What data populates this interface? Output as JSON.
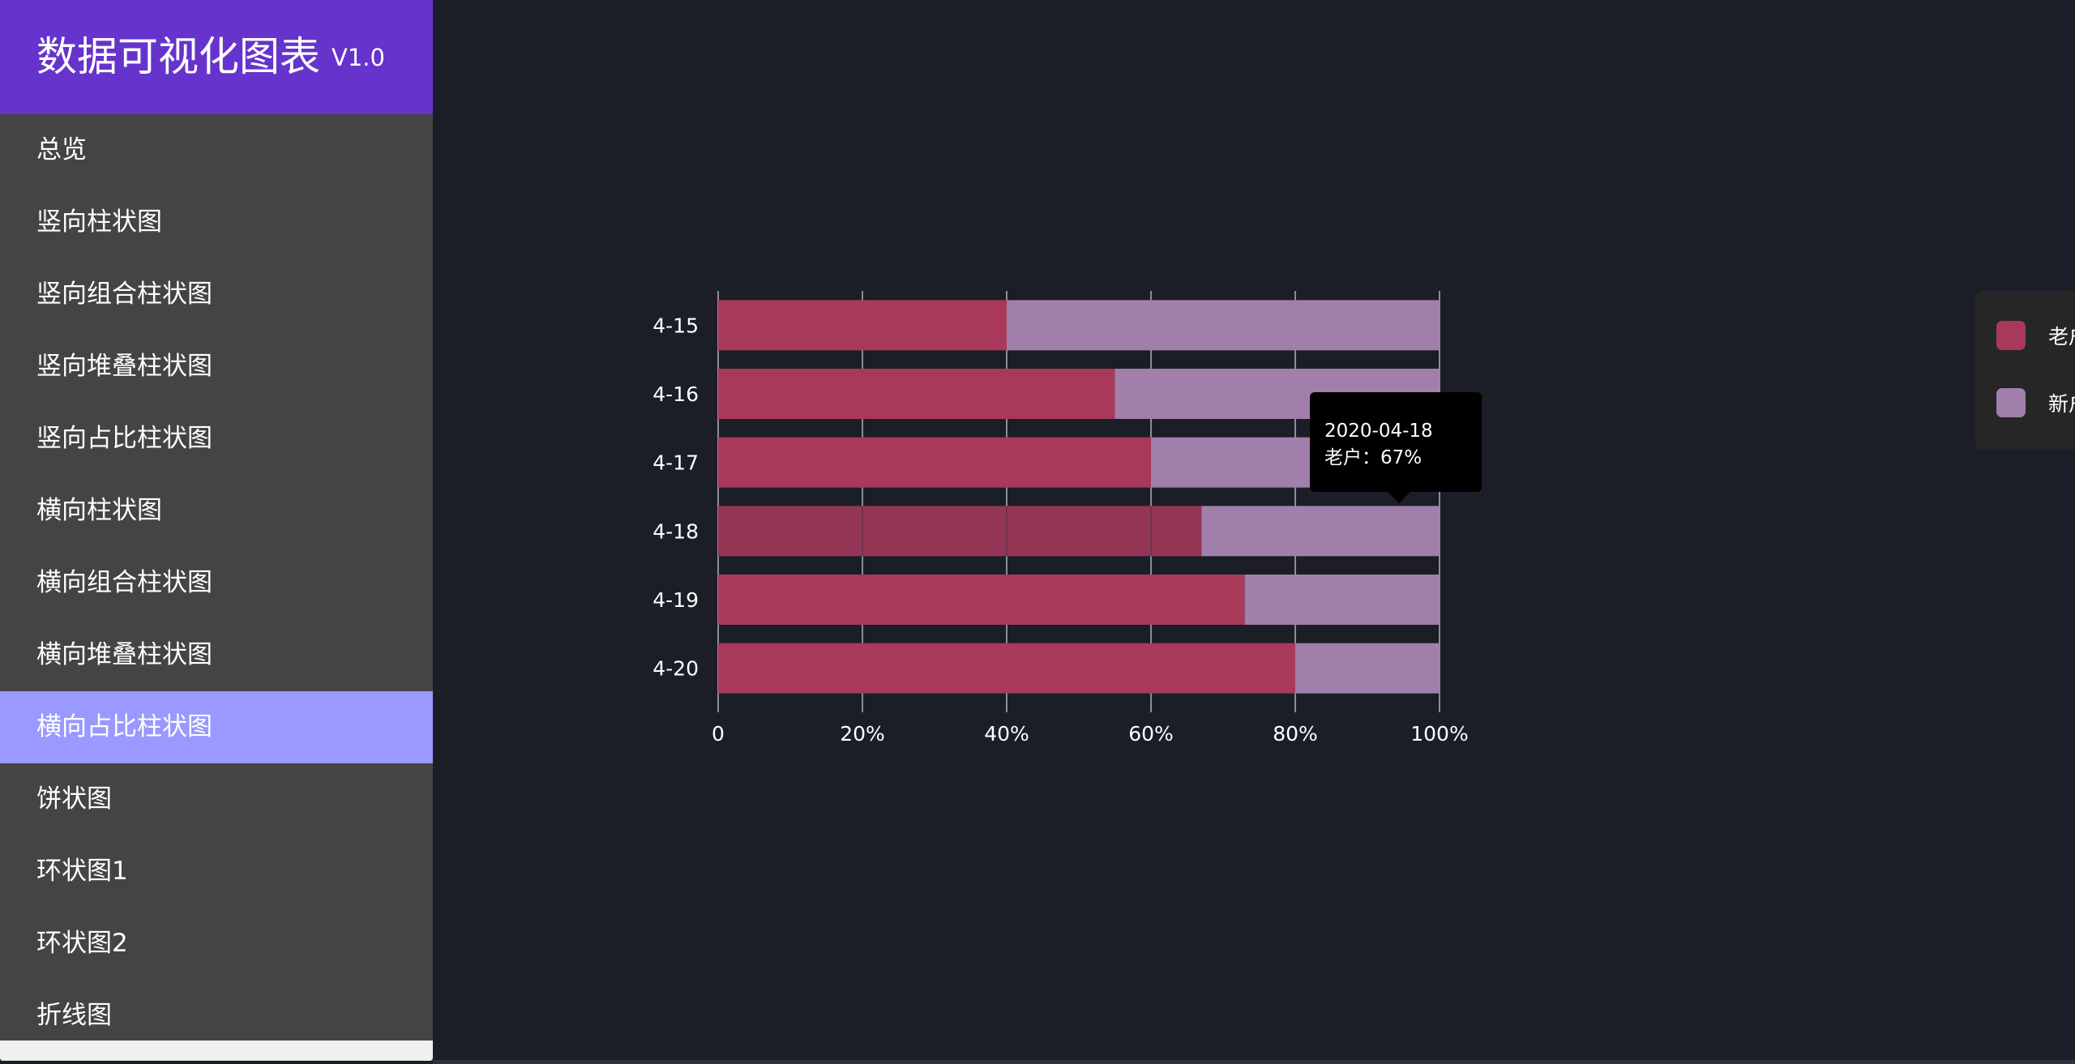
{
  "sidebar": {
    "title": "数据可视化图表",
    "version": "V1.0",
    "items": [
      {
        "label": "总览"
      },
      {
        "label": "竖向柱状图"
      },
      {
        "label": "竖向组合柱状图"
      },
      {
        "label": "竖向堆叠柱状图"
      },
      {
        "label": "竖向占比柱状图"
      },
      {
        "label": "横向柱状图"
      },
      {
        "label": "横向组合柱状图"
      },
      {
        "label": "横向堆叠柱状图"
      },
      {
        "label": "横向占比柱状图",
        "active": true
      },
      {
        "label": "饼状图"
      },
      {
        "label": "环状图1"
      },
      {
        "label": "环状图2"
      },
      {
        "label": "折线图"
      }
    ]
  },
  "colors": {
    "accent": "#6633cc",
    "active_menu": "#9999ff",
    "old_customer": "#a8395b",
    "new_customer": "#a17fab",
    "background": "#1b1e27"
  },
  "chart_data": {
    "type": "bar",
    "orientation": "horizontal",
    "stacking": "percent",
    "categories": [
      "4-15",
      "4-16",
      "4-17",
      "4-18",
      "4-19",
      "4-20"
    ],
    "series": [
      {
        "name": "老户",
        "values": [
          40,
          55,
          60,
          67,
          73,
          80
        ]
      },
      {
        "name": "新户",
        "values": [
          60,
          45,
          40,
          33,
          27,
          20
        ]
      }
    ],
    "x_ticks": [
      "0",
      "20%",
      "40%",
      "60%",
      "80%",
      "100%"
    ],
    "xlim": [
      0,
      100
    ],
    "grid": true,
    "legend_position": "right",
    "highlighted_category": "4-18"
  },
  "tooltip": {
    "date": "2020-04-18",
    "text": "老户：67%"
  }
}
